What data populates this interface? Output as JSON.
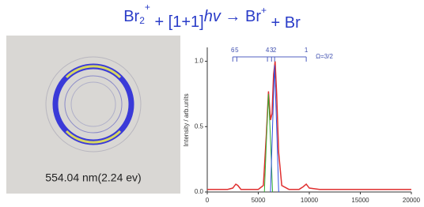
{
  "header": {
    "title_parts": [
      "Br",
      "2",
      "+",
      " + [1+1]",
      "hv",
      " → Br",
      "+",
      " + Br"
    ]
  },
  "image": {
    "caption": "554.04 nm(2.24 ev)"
  },
  "chart_data": {
    "type": "line",
    "ylabel": "Intensity / arb.units",
    "xlim": [
      0,
      20000
    ],
    "xticks": [
      0,
      5000,
      10000,
      15000,
      20000
    ],
    "ylim": [
      0,
      1.1
    ],
    "yticks": [
      {
        "value": 0,
        "label": "0.0"
      },
      {
        "value": 0.5,
        "label": "0.5"
      },
      {
        "value": 1,
        "label": "1.0"
      }
    ],
    "series": [
      {
        "color": "#e03030",
        "x": [
          0,
          1000,
          2000,
          2500,
          2800,
          3000,
          3300,
          4000,
          5000,
          5500,
          5800,
          6000,
          6200,
          6350,
          6500,
          6650,
          6800,
          7000,
          7300,
          8000,
          9000,
          9400,
          9700,
          10000,
          11000,
          15000,
          20000
        ],
        "values": [
          0.02,
          0.02,
          0.02,
          0.03,
          0.06,
          0.05,
          0.02,
          0.02,
          0.02,
          0.05,
          0.45,
          0.77,
          0.55,
          0.6,
          0.9,
          1.0,
          0.75,
          0.3,
          0.05,
          0.02,
          0.02,
          0.04,
          0.06,
          0.03,
          0.02,
          0.02,
          0.02
        ]
      },
      {
        "color": "#30b030",
        "x": [
          5600,
          5800,
          6000,
          6200,
          6400
        ],
        "values": [
          0,
          0.4,
          0.75,
          0.4,
          0
        ]
      },
      {
        "color": "#3050e0",
        "x": [
          6200,
          6400,
          6600,
          6800,
          7000
        ],
        "values": [
          0,
          0.5,
          0.97,
          0.5,
          0
        ]
      }
    ],
    "annotations": {
      "labels": [
        "6",
        "5",
        "4",
        "3",
        "2",
        "1"
      ],
      "x": [
        2500,
        2900,
        5900,
        6300,
        6600,
        9700
      ],
      "note": "Ω=3/2"
    }
  }
}
